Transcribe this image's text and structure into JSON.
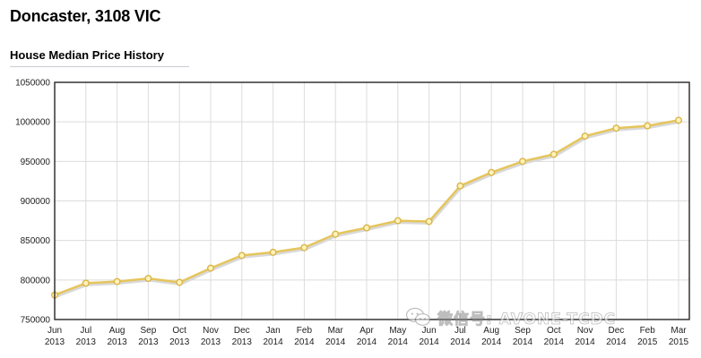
{
  "page": {
    "title": "Doncaster, 3108 VIC",
    "section_title": "House Median Price History"
  },
  "watermark": {
    "text": "微信号: AVONE-TCDC",
    "icon": "wechat-icon"
  },
  "colors": {
    "line": "#e6c55c",
    "line_shadow": "#d9d9d9",
    "marker_fill": "#fff3b8",
    "marker_stroke": "#d9b44a",
    "grid": "#dcdcdc",
    "frame": "#333333"
  },
  "chart_data": {
    "type": "line",
    "title": "",
    "xlabel": "",
    "ylabel": "",
    "ylim": [
      750000,
      1050000
    ],
    "yticks": [
      750000,
      800000,
      850000,
      900000,
      950000,
      1000000,
      1050000
    ],
    "grid": true,
    "legend": "none",
    "x": [
      {
        "month": "Jun",
        "year": "2013"
      },
      {
        "month": "Jul",
        "year": "2013"
      },
      {
        "month": "Aug",
        "year": "2013"
      },
      {
        "month": "Sep",
        "year": "2013"
      },
      {
        "month": "Oct",
        "year": "2013"
      },
      {
        "month": "Nov",
        "year": "2013"
      },
      {
        "month": "Dec",
        "year": "2013"
      },
      {
        "month": "Jan",
        "year": "2014"
      },
      {
        "month": "Feb",
        "year": "2014"
      },
      {
        "month": "Mar",
        "year": "2014"
      },
      {
        "month": "Apr",
        "year": "2014"
      },
      {
        "month": "May",
        "year": "2014"
      },
      {
        "month": "Jun",
        "year": "2014"
      },
      {
        "month": "Jul",
        "year": "2014"
      },
      {
        "month": "Aug",
        "year": "2014"
      },
      {
        "month": "Sep",
        "year": "2014"
      },
      {
        "month": "Oct",
        "year": "2014"
      },
      {
        "month": "Nov",
        "year": "2014"
      },
      {
        "month": "Dec",
        "year": "2014"
      },
      {
        "month": "Feb",
        "year": "2015"
      },
      {
        "month": "Mar",
        "year": "2015"
      }
    ],
    "series": [
      {
        "values": [
          781000,
          796000,
          798000,
          802000,
          797000,
          815000,
          831000,
          835000,
          841000,
          858000,
          866000,
          875000,
          874000,
          919000,
          936000,
          950000,
          959000,
          982000,
          992000,
          995000,
          1002000
        ]
      }
    ]
  }
}
